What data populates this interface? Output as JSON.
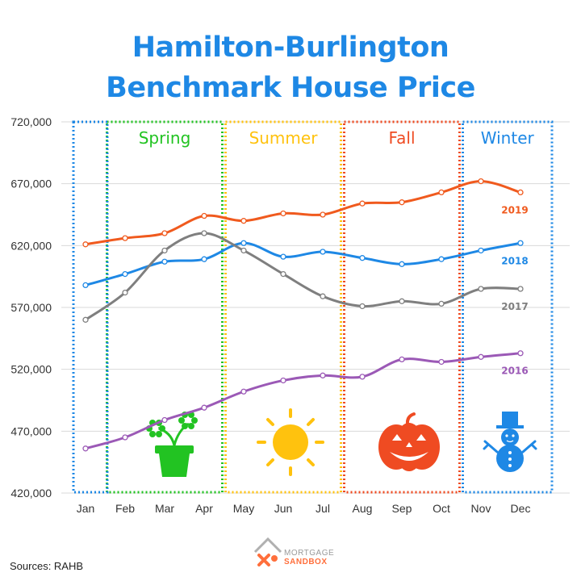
{
  "title_line1": "Hamilton-Burlington",
  "title_line2": "Benchmark House Price",
  "source": "Sources: RAHB",
  "logo": {
    "line1": "MORTGAGE",
    "line2": "SANDBOX"
  },
  "colors": {
    "title": "#1e88e5",
    "spring": "#22c322",
    "summer": "#ffc20e",
    "fall": "#ef4b22",
    "winter": "#1e88e5",
    "2019": "#f05a1e",
    "2018": "#1e88e5",
    "2017": "#7f7f7f",
    "2016": "#9b59b6"
  },
  "chart_data": {
    "type": "line",
    "categories": [
      "Jan",
      "Feb",
      "Mar",
      "Apr",
      "May",
      "Jun",
      "Jul",
      "Aug",
      "Sep",
      "Oct",
      "Nov",
      "Dec"
    ],
    "ylim": [
      420000,
      720000
    ],
    "yticks": [
      420000,
      470000,
      520000,
      570000,
      620000,
      670000,
      720000
    ],
    "ytick_labels": [
      "420,000",
      "470,000",
      "520,000",
      "570,000",
      "620,000",
      "670,000",
      "720,000"
    ],
    "grid": true,
    "series": [
      {
        "name": "2019",
        "values": [
          621000,
          626000,
          630000,
          644000,
          640000,
          646000,
          645000,
          654000,
          655000,
          663000,
          672000,
          663000
        ]
      },
      {
        "name": "2018",
        "values": [
          588000,
          597000,
          607000,
          609000,
          622000,
          611000,
          615000,
          610000,
          605000,
          609000,
          616000,
          622000
        ]
      },
      {
        "name": "2017",
        "values": [
          560000,
          582000,
          616000,
          630000,
          616000,
          597000,
          579000,
          571000,
          575000,
          573000,
          585000,
          585000
        ]
      },
      {
        "name": "2016",
        "values": [
          456000,
          465000,
          479000,
          489000,
          502000,
          511000,
          515000,
          514000,
          528000,
          526000,
          530000,
          533000
        ]
      }
    ],
    "seasons": [
      {
        "name": "Spring",
        "start": 1,
        "end": 3
      },
      {
        "name": "Summer",
        "start": 4,
        "end": 6
      },
      {
        "name": "Fall",
        "start": 7,
        "end": 9
      },
      {
        "name": "Winter",
        "start": 10,
        "end": 11
      },
      {
        "name": "",
        "start": 0,
        "end": 0
      }
    ]
  }
}
